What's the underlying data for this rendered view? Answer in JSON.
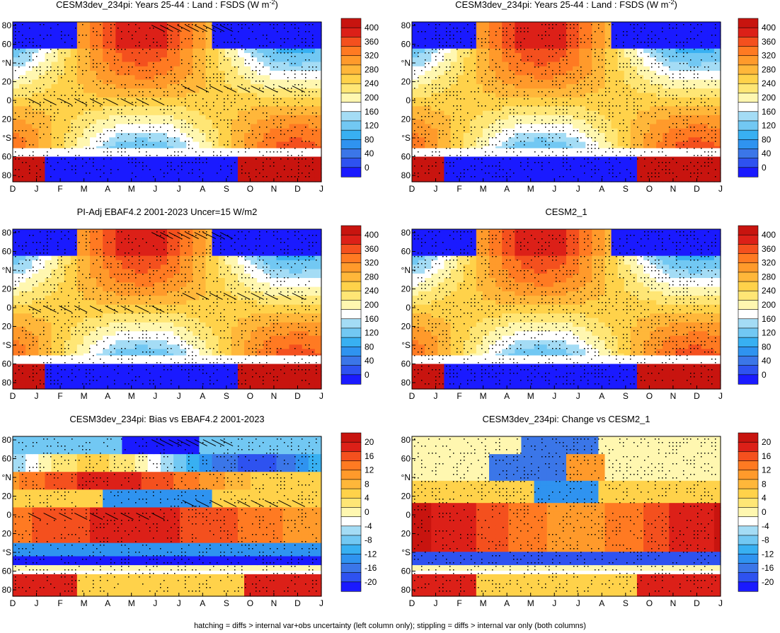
{
  "footer": "hatching = diffs > internal var+obs uncertainty (left column only); stippling = diffs > internal var only (both columns)",
  "palettes": {
    "abs": [
      "#1a1aff",
      "#2e52f0",
      "#3b76e8",
      "#2f93f0",
      "#38b0f2",
      "#72c8f3",
      "#a4dcf5",
      "#ffffff",
      "#fff7b0",
      "#ffe675",
      "#ffd24a",
      "#ffb73a",
      "#ff9a2b",
      "#ff7a22",
      "#f4501e",
      "#dc2018",
      "#c8140f"
    ],
    "diff": [
      "#1a1aff",
      "#2e52f0",
      "#3b76e8",
      "#2f93f0",
      "#38b0f2",
      "#72c8f3",
      "#a4dcf5",
      "#ffffff",
      "#fff7b0",
      "#ffe675",
      "#ffd24a",
      "#ffb73a",
      "#ff9a2b",
      "#ff7a22",
      "#f4501e",
      "#dc2018",
      "#c8140f"
    ]
  },
  "chart_data": [
    {
      "type": "heatmap",
      "title": "CESM3dev_234pi: Years 25-44 : Land : FSDS (W m",
      "title_sup": "-2",
      "title_tail": ")",
      "x_ticks": [
        "D",
        "J",
        "F",
        "M",
        "A",
        "M",
        "J",
        "J",
        "A",
        "S",
        "O",
        "N",
        "D",
        "J"
      ],
      "y_ticks": [
        "80",
        "60",
        "°N",
        "20",
        "0",
        "20",
        "°S",
        "60",
        "80"
      ],
      "colorbar_ticks": [
        "400",
        "360",
        "320",
        "280",
        "240",
        "200",
        "160",
        "120",
        "80",
        "40",
        "0"
      ],
      "palette": "abs",
      "kind": "abs",
      "hatching": true,
      "stipple_density": 0.55
    },
    {
      "type": "heatmap",
      "title": "CESM3dev_234pi: Years 25-44 : Land : FSDS (W m",
      "title_sup": "-2",
      "title_tail": ")",
      "x_ticks": [
        "D",
        "J",
        "F",
        "M",
        "A",
        "M",
        "J",
        "J",
        "A",
        "S",
        "O",
        "N",
        "D",
        "J"
      ],
      "y_ticks": [
        "80",
        "60",
        "°N",
        "20",
        "0",
        "20",
        "°S",
        "60",
        "80"
      ],
      "colorbar_ticks": [
        "400",
        "360",
        "320",
        "280",
        "240",
        "200",
        "160",
        "120",
        "80",
        "40",
        "0"
      ],
      "palette": "abs",
      "kind": "abs",
      "hatching": false,
      "stipple_density": 0.6
    },
    {
      "type": "heatmap",
      "title": "PI-Adj EBAF4.2 2001-2023 Uncer=15 W/m2",
      "x_ticks": [
        "D",
        "J",
        "F",
        "M",
        "A",
        "M",
        "J",
        "J",
        "A",
        "S",
        "O",
        "N",
        "D",
        "J"
      ],
      "y_ticks": [
        "80",
        "60",
        "°N",
        "20",
        "0",
        "20",
        "°S",
        "60",
        "80"
      ],
      "colorbar_ticks": [
        "400",
        "360",
        "320",
        "280",
        "240",
        "200",
        "160",
        "120",
        "80",
        "40",
        "0"
      ],
      "palette": "abs",
      "kind": "abs",
      "hatching": true,
      "stipple_density": 0.55
    },
    {
      "type": "heatmap",
      "title": "CESM2_1",
      "x_ticks": [
        "D",
        "J",
        "F",
        "M",
        "A",
        "M",
        "J",
        "J",
        "A",
        "S",
        "O",
        "N",
        "D",
        "J"
      ],
      "y_ticks": [
        "80",
        "60",
        "°N",
        "20",
        "0",
        "20",
        "°S",
        "60",
        "80"
      ],
      "colorbar_ticks": [
        "400",
        "360",
        "320",
        "280",
        "240",
        "200",
        "160",
        "120",
        "80",
        "40",
        "0"
      ],
      "palette": "abs",
      "kind": "abs",
      "hatching": false,
      "stipple_density": 0.6
    },
    {
      "type": "heatmap",
      "title": "CESM3dev_234pi: Bias vs EBAF4.2 2001-2023",
      "x_ticks": [
        "D",
        "J",
        "F",
        "M",
        "A",
        "M",
        "J",
        "J",
        "A",
        "S",
        "O",
        "N",
        "D",
        "J"
      ],
      "y_ticks": [
        "80",
        "60",
        "°N",
        "20",
        "0",
        "20",
        "°S",
        "60",
        "80"
      ],
      "colorbar_ticks": [
        "20",
        "16",
        "12",
        "8",
        "4",
        "0",
        "-4",
        "-8",
        "-12",
        "-16",
        "-20"
      ],
      "palette": "diff",
      "kind": "bias",
      "hatching": true,
      "stipple_density": 0.5
    },
    {
      "type": "heatmap",
      "title": "CESM3dev_234pi: Change vs CESM2_1",
      "x_ticks": [
        "D",
        "J",
        "F",
        "M",
        "A",
        "M",
        "J",
        "J",
        "A",
        "S",
        "O",
        "N",
        "D",
        "J"
      ],
      "y_ticks": [
        "80",
        "60",
        "°N",
        "20",
        "0",
        "20",
        "°S",
        "60",
        "80"
      ],
      "colorbar_ticks": [
        "20",
        "16",
        "12",
        "8",
        "4",
        "0",
        "-4",
        "-8",
        "-12",
        "-16",
        "-20"
      ],
      "palette": "diff",
      "kind": "change",
      "hatching": false,
      "stipple_density": 0.5
    }
  ]
}
